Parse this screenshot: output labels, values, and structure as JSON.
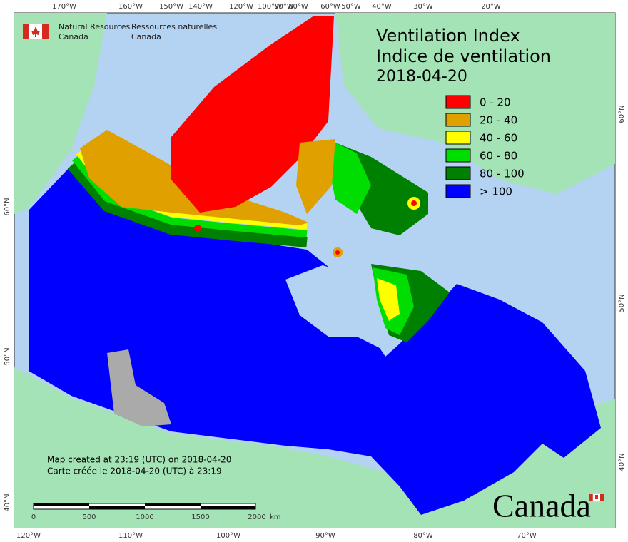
{
  "header": {
    "agency_en": [
      "Natural Resources",
      "Canada"
    ],
    "agency_fr": [
      "Ressources naturelles",
      "Canada"
    ]
  },
  "title": [
    "Ventilation Index",
    "Indice de ventilation",
    "2018-04-20"
  ],
  "legend": [
    {
      "label": "0 - 20",
      "color": "#ff0000"
    },
    {
      "label": "20 - 40",
      "color": "#e0a000"
    },
    {
      "label": "40 - 60",
      "color": "#ffff00"
    },
    {
      "label": "60 - 80",
      "color": "#00dd00"
    },
    {
      "label": "80 - 100",
      "color": "#008000"
    },
    {
      "label": "> 100",
      "color": "#0000ff"
    }
  ],
  "footer": [
    "Map created at 23:19 (UTC) on 2018-04-20",
    "Carte créée le 2018-04-20 (UTC) à 23:19"
  ],
  "scale_bar": {
    "labels": [
      "0",
      "500",
      "1000",
      "1500",
      "2000"
    ],
    "unit": "km"
  },
  "top_lon_labels": [
    "170°W",
    "160°W",
    "150°W",
    "140°W",
    "120°W",
    "100°W",
    "90°W",
    "80°W",
    "60°W",
    "50°W",
    "40°W",
    "30°W",
    "20°W"
  ],
  "bottom_lon_labels": [
    "120°W",
    "110°W",
    "100°W",
    "90°W",
    "80°W",
    "70°W"
  ],
  "left_lat_labels": [
    "60°N",
    "50°N",
    "40°N"
  ],
  "right_lat_labels": [
    "60°N",
    "50°N",
    "40°N"
  ],
  "wordmark": "Canada"
}
